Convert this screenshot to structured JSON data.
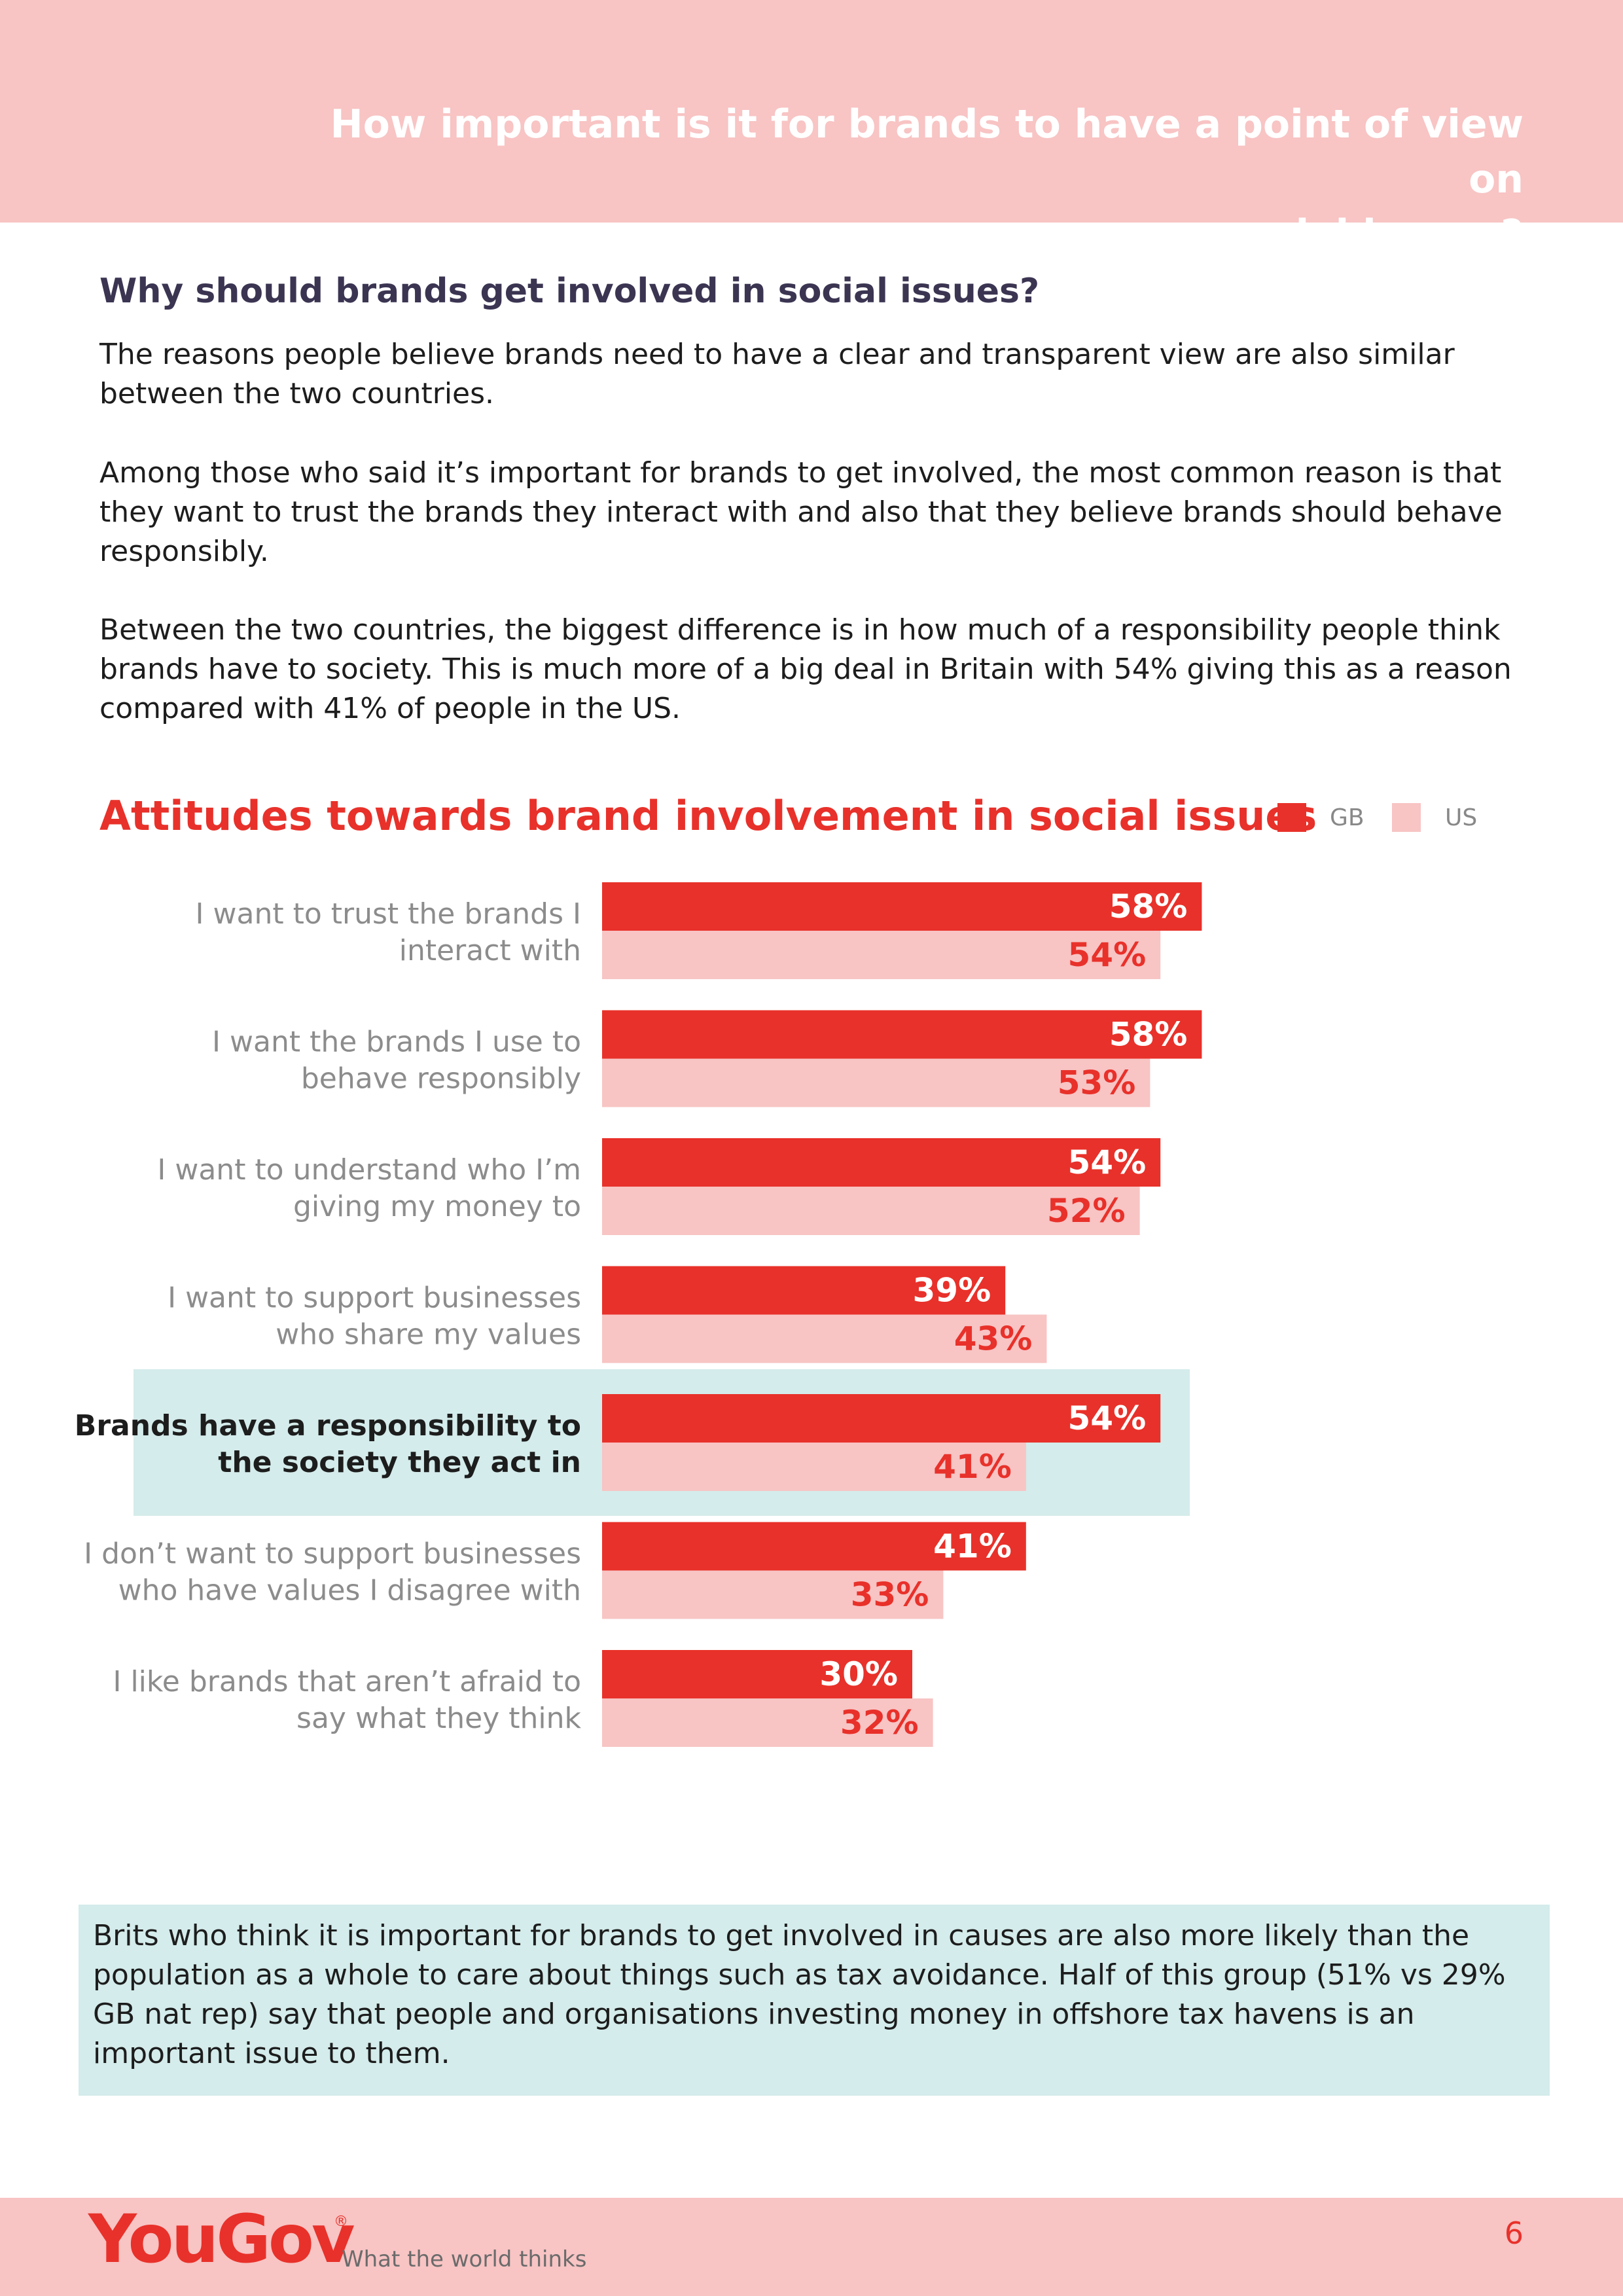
{
  "header": {
    "title_line1": "How important is it for brands to have a point of view on",
    "title_line2": "social issues?"
  },
  "section": {
    "heading": "Why should brands get involved in social issues?",
    "paragraphs": [
      "The reasons people believe brands need to have a clear and transparent view are also similar between the two countries.",
      "Among those who said it’s important for brands to get involved, the most common reason is that they want to trust the brands they interact with and also that they believe brands should behave responsibly.",
      "Between the two countries, the biggest difference is in how much of a responsibility people think brands have to society. This is much more of a big deal in Britain with 54% giving this as a reason compared with 41% of people in the US."
    ]
  },
  "chart_data": {
    "type": "bar",
    "orientation": "horizontal",
    "title": "Attitudes towards brand involvement in social issues",
    "categories": [
      [
        "I want to trust the brands I",
        "interact with"
      ],
      [
        "I want the brands I use to",
        "behave responsibly"
      ],
      [
        "I want to understand who I’m",
        "giving my money to"
      ],
      [
        "I want to support businesses",
        "who share my values"
      ],
      [
        "Brands have a responsibility to",
        "the society they act in"
      ],
      [
        "I don’t want to support businesses",
        "who have values I disagree with"
      ],
      [
        "I like brands that aren’t afraid to",
        "say what they think"
      ]
    ],
    "highlighted_index": 4,
    "series": [
      {
        "name": "GB",
        "color": "#e8312a",
        "label_color": "#ffffff",
        "values": [
          58,
          58,
          54,
          39,
          54,
          41,
          30
        ]
      },
      {
        "name": "US",
        "color": "#f8c4c4",
        "label_color": "#e8312a",
        "values": [
          54,
          53,
          52,
          43,
          41,
          33,
          32
        ]
      }
    ],
    "value_suffix": "%",
    "xlim": [
      0,
      100
    ],
    "grid": false,
    "legend_position": "top-right",
    "highlight_color": "#d4eceb"
  },
  "callout": {
    "text": "Brits who think it is important for brands to get involved in causes are also more likely than the population as a whole to care about things such as tax avoidance. Half of this group (51% vs 29% GB nat rep) say that people and organisations investing money in offshore tax havens is an important issue to them."
  },
  "footer": {
    "logo": "YouGov",
    "registered": "®",
    "tagline": "What the world thinks",
    "page_number": "6"
  }
}
